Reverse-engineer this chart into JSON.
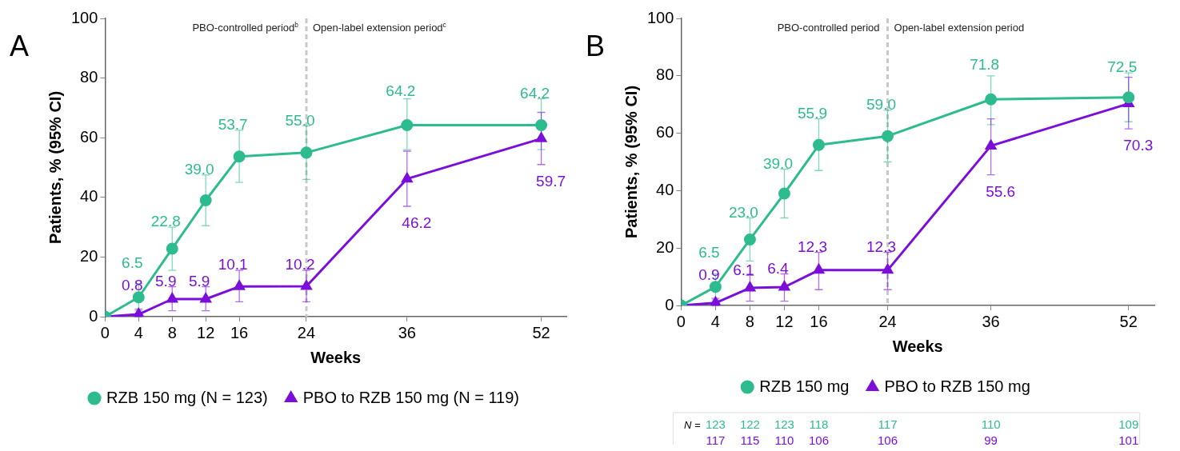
{
  "chart_data": [
    {
      "type": "line",
      "title": "A",
      "xlabel": "Weeks",
      "ylabel": "Patients, % (95% CI)",
      "x": [
        0,
        4,
        8,
        12,
        16,
        24,
        36,
        52
      ],
      "xlim": [
        0,
        55
      ],
      "xticks": [
        0,
        4,
        8,
        12,
        16,
        24,
        36,
        52
      ],
      "ylim": [
        0,
        100
      ],
      "yticks": [
        0,
        20,
        40,
        60,
        80,
        100
      ],
      "grid": false,
      "legend": "bottom",
      "ref_lines": [
        {
          "axis": "x",
          "value": 24,
          "color": "#c8c8c8",
          "line_style": "dashed"
        }
      ],
      "annotations": [
        "PBO-controlled period$^{b}$",
        "Open-label extension period$^{c}$"
      ],
      "series": [
        {
          "name": "RZB 150 mg (N = 123)",
          "color": "#2dbb8f",
          "marker": "circle",
          "values": [
            0,
            6.5,
            22.8,
            39.0,
            53.7,
            55.0,
            64.2,
            64.2
          ],
          "value_labels": [
            null,
            "6.5",
            "22.8",
            "39.0",
            "53.7",
            "55.0",
            "64.2",
            "64.2"
          ],
          "errors": [
            null,
            [
              2,
              11
            ],
            [
              15.5,
              30
            ],
            [
              30.5,
              47.5
            ],
            [
              45,
              62.5
            ],
            [
              46,
              64
            ],
            [
              56,
              73
            ],
            [
              56,
              73
            ]
          ]
        },
        {
          "name": "PBO to RZB 150 mg (N = 119)",
          "color": "#7b0fd9",
          "marker": "triangle",
          "values": [
            0,
            0.8,
            5.9,
            5.9,
            10.1,
            10.2,
            46.2,
            59.7
          ],
          "value_labels": [
            null,
            "0.8",
            "5.9",
            "5.9",
            "10.1",
            "10.2",
            "46.2",
            "59.7"
          ],
          "errors": [
            null,
            [
              0,
              2.5
            ],
            [
              2,
              10
            ],
            [
              2,
              10
            ],
            [
              5,
              15.5
            ],
            [
              5,
              15.5
            ],
            [
              37,
              55.5
            ],
            [
              51,
              68.5
            ]
          ]
        }
      ]
    },
    {
      "type": "line",
      "title": "B",
      "xlabel": "Weeks",
      "ylabel": "Patients, % (95% CI)",
      "x": [
        0,
        4,
        8,
        12,
        16,
        24,
        36,
        52
      ],
      "xlim": [
        0,
        55
      ],
      "xticks": [
        0,
        4,
        8,
        12,
        16,
        24,
        36,
        52
      ],
      "ylim": [
        0,
        100
      ],
      "yticks": [
        0,
        20,
        40,
        60,
        80,
        100
      ],
      "grid": false,
      "legend": "bottom",
      "ref_lines": [
        {
          "axis": "x",
          "value": 24,
          "color": "#c8c8c8",
          "line_style": "dashed"
        }
      ],
      "annotations": [
        "PBO-controlled period",
        "Open-label extension period",
        "N =",
        "123 122 123 118 117 110 109",
        "117 115 110 106 106 99 101"
      ],
      "series": [
        {
          "name": "RZB 150 mg",
          "color": "#2dbb8f",
          "marker": "circle",
          "values": [
            0,
            6.5,
            23.0,
            39.0,
            55.9,
            59.0,
            71.8,
            72.5
          ],
          "value_labels": [
            null,
            "6.5",
            "23.0",
            "39.0",
            "55.9",
            "59.0",
            "71.8",
            "72.5"
          ],
          "errors": [
            null,
            [
              2,
              11
            ],
            [
              15.5,
              30.5
            ],
            [
              30.5,
              47.5
            ],
            [
              47,
              65
            ],
            [
              50,
              68
            ],
            [
              63,
              80
            ],
            [
              64,
              81
            ]
          ]
        },
        {
          "name": "PBO to RZB 150 mg",
          "color": "#7b0fd9",
          "marker": "triangle",
          "values": [
            0,
            0.9,
            6.1,
            6.4,
            12.3,
            12.3,
            55.6,
            70.3
          ],
          "value_labels": [
            null,
            "0.9",
            "6.1",
            "6.4",
            "12.3",
            "12.3",
            "55.6",
            "70.3"
          ],
          "errors": [
            null,
            [
              0,
              2.5
            ],
            [
              1.5,
              10.5
            ],
            [
              1.5,
              11
            ],
            [
              5.5,
              18.5
            ],
            [
              5.5,
              18.5
            ],
            [
              45.5,
              65
            ],
            [
              61.5,
              79.5
            ]
          ]
        }
      ]
    }
  ]
}
